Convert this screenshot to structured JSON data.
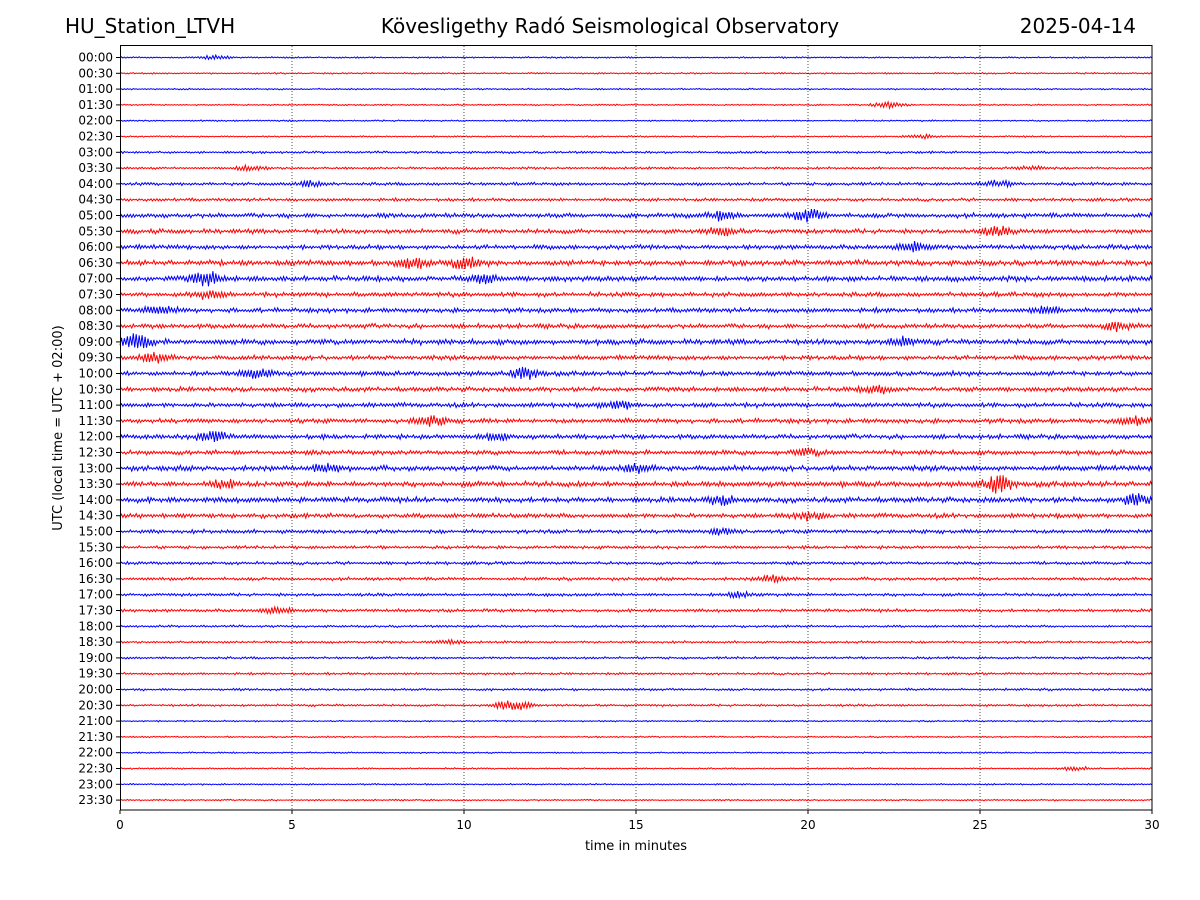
{
  "header": {
    "station": "HU_Station_LTVH",
    "title": "Kövesligethy Radó Seismological Observatory",
    "date": "2025-04-14"
  },
  "chart_data": {
    "type": "line",
    "xlabel": "time in minutes",
    "ylabel": "UTC (local time = UTC + 02:00)",
    "xlim": [
      0,
      30
    ],
    "x_ticks": [
      "0",
      "5",
      "10",
      "15",
      "20",
      "25",
      "30"
    ],
    "grid": "vertical dotted lines at 5-minute ticks",
    "colors": {
      "even_rows": "#0000ff",
      "odd_rows": "#ff0000"
    },
    "rows": [
      "00:00",
      "00:30",
      "01:00",
      "01:30",
      "02:00",
      "02:30",
      "03:00",
      "03:30",
      "04:00",
      "04:30",
      "05:00",
      "05:30",
      "06:00",
      "06:30",
      "07:00",
      "07:30",
      "08:00",
      "08:30",
      "09:00",
      "09:30",
      "10:00",
      "10:30",
      "11:00",
      "11:30",
      "12:00",
      "12:30",
      "13:00",
      "13:30",
      "14:00",
      "14:30",
      "15:00",
      "15:30",
      "16:00",
      "16:30",
      "17:00",
      "17:30",
      "18:00",
      "18:30",
      "19:00",
      "19:30",
      "20:00",
      "20:30",
      "21:00",
      "21:30",
      "22:00",
      "22:30",
      "23:00",
      "23:30"
    ],
    "noise_level": [
      1,
      1,
      1,
      1,
      1,
      1,
      1.5,
      1.5,
      2,
      2,
      3,
      3,
      3,
      3.5,
      3.5,
      3,
      3,
      3,
      3.5,
      3,
      3,
      3,
      3,
      3,
      3,
      3,
      3.5,
      3.5,
      3.5,
      3,
      2.5,
      2,
      2,
      2,
      2,
      2,
      1.5,
      1.5,
      1.5,
      1.5,
      1.5,
      1.5,
      1,
      1,
      1,
      1,
      1,
      1
    ],
    "events": [
      {
        "row": "00:00",
        "minute": 2.8,
        "level": 2
      },
      {
        "row": "01:30",
        "minute": 22.3,
        "level": 3
      },
      {
        "row": "02:30",
        "minute": 23.3,
        "level": 2
      },
      {
        "row": "03:30",
        "minute": 3.8,
        "level": 3
      },
      {
        "row": "03:30",
        "minute": 26.5,
        "level": 2
      },
      {
        "row": "04:00",
        "minute": 5.5,
        "level": 3
      },
      {
        "row": "04:00",
        "minute": 25.5,
        "level": 3
      },
      {
        "row": "05:00",
        "minute": 20.0,
        "level": 6
      },
      {
        "row": "05:00",
        "minute": 17.5,
        "level": 4
      },
      {
        "row": "05:30",
        "minute": 17.5,
        "level": 4
      },
      {
        "row": "05:30",
        "minute": 25.5,
        "level": 4
      },
      {
        "row": "06:00",
        "minute": 23.0,
        "level": 4
      },
      {
        "row": "06:30",
        "minute": 8.5,
        "level": 5
      },
      {
        "row": "06:30",
        "minute": 10.0,
        "level": 5
      },
      {
        "row": "07:00",
        "minute": 2.5,
        "level": 7
      },
      {
        "row": "07:00",
        "minute": 10.5,
        "level": 4
      },
      {
        "row": "07:30",
        "minute": 2.5,
        "level": 4
      },
      {
        "row": "08:00",
        "minute": 1.2,
        "level": 4
      },
      {
        "row": "08:00",
        "minute": 27.0,
        "level": 4
      },
      {
        "row": "08:30",
        "minute": 29.0,
        "level": 4
      },
      {
        "row": "09:00",
        "minute": 0.5,
        "level": 7
      },
      {
        "row": "09:00",
        "minute": 22.8,
        "level": 4
      },
      {
        "row": "09:30",
        "minute": 1.0,
        "level": 5
      },
      {
        "row": "10:00",
        "minute": 4.0,
        "level": 5
      },
      {
        "row": "10:00",
        "minute": 11.8,
        "level": 5
      },
      {
        "row": "10:30",
        "minute": 22.0,
        "level": 4
      },
      {
        "row": "11:00",
        "minute": 14.5,
        "level": 4
      },
      {
        "row": "11:30",
        "minute": 9.0,
        "level": 5
      },
      {
        "row": "11:30",
        "minute": 29.5,
        "level": 4
      },
      {
        "row": "12:00",
        "minute": 2.7,
        "level": 6
      },
      {
        "row": "12:00",
        "minute": 11.0,
        "level": 4
      },
      {
        "row": "12:30",
        "minute": 20.0,
        "level": 3
      },
      {
        "row": "13:00",
        "minute": 6.0,
        "level": 4
      },
      {
        "row": "13:00",
        "minute": 15.0,
        "level": 4
      },
      {
        "row": "13:30",
        "minute": 3.0,
        "level": 4
      },
      {
        "row": "13:30",
        "minute": 25.5,
        "level": 8
      },
      {
        "row": "14:00",
        "minute": 17.5,
        "level": 4
      },
      {
        "row": "14:00",
        "minute": 29.5,
        "level": 5
      },
      {
        "row": "14:30",
        "minute": 20.0,
        "level": 4
      },
      {
        "row": "15:00",
        "minute": 17.5,
        "level": 3
      },
      {
        "row": "16:30",
        "minute": 19.0,
        "level": 4
      },
      {
        "row": "17:00",
        "minute": 18.0,
        "level": 3
      },
      {
        "row": "17:30",
        "minute": 4.5,
        "level": 3
      },
      {
        "row": "18:30",
        "minute": 9.5,
        "level": 2
      },
      {
        "row": "20:30",
        "minute": 11.2,
        "level": 3
      },
      {
        "row": "20:30",
        "minute": 11.6,
        "level": 3
      },
      {
        "row": "22:30",
        "minute": 27.8,
        "level": 2
      }
    ]
  }
}
